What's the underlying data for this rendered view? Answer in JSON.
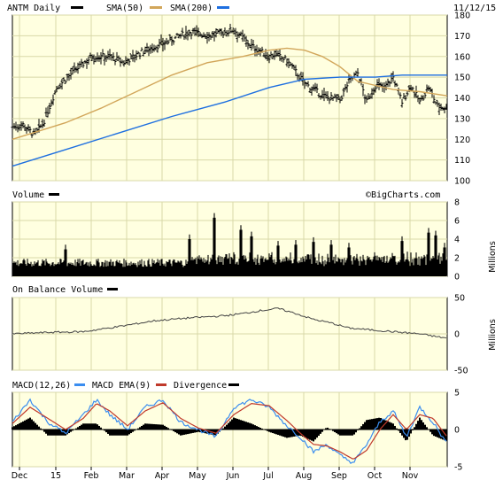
{
  "header": {
    "symbol_label": "ANTM Daily",
    "sma50_label": "SMA(50)",
    "sma200_label": "SMA(200)",
    "date": "11/12/15"
  },
  "volume_panel": {
    "label": "Volume",
    "unit": "Millions",
    "watermark": "©BigCharts.com"
  },
  "obv_panel": {
    "label": "On Balance Volume",
    "unit": "Millions"
  },
  "macd_panel": {
    "label": "MACD(12,26)",
    "ema_label": "MACD EMA(9)",
    "div_label": "Divergence"
  },
  "x_axis_labels": [
    "Dec",
    "15",
    "Feb",
    "Mar",
    "Apr",
    "May",
    "Jun",
    "Jul",
    "Aug",
    "Sep",
    "Oct",
    "Nov"
  ],
  "colors": {
    "background": "#ffffe0",
    "grid": "#d8d8a8",
    "sma50": "#d2a65a",
    "sma200": "#1e6fe0",
    "macd": "#3a8df0",
    "macd_ema": "#c0392b",
    "bars": "#000000"
  },
  "chart_data": [
    {
      "type": "line",
      "title": "ANTM Daily",
      "subtype": "ohlc",
      "ylim": [
        100,
        180
      ],
      "yticks": [
        100,
        110,
        120,
        130,
        140,
        150,
        160,
        170,
        180
      ],
      "price_x": [
        0,
        12,
        25,
        35,
        50,
        70,
        90,
        110,
        125,
        150,
        175,
        200,
        225,
        250,
        270,
        290,
        296,
        310,
        330,
        350,
        370,
        380,
        390,
        400,
        410,
        420,
        430,
        440,
        450,
        460,
        470,
        480,
        491
      ],
      "price": [
        126,
        127,
        122,
        128,
        145,
        153,
        160,
        160,
        157,
        163,
        167,
        172,
        170,
        173,
        165,
        160,
        161,
        158,
        147,
        141,
        139,
        148,
        152,
        138,
        146,
        145,
        150,
        138,
        146,
        138,
        145,
        136,
        135
      ],
      "series": [
        {
          "name": "SMA(50)",
          "x": [
            0,
            60,
            100,
            140,
            180,
            220,
            260,
            290,
            310,
            330,
            350,
            370,
            390,
            410,
            430,
            460,
            491
          ],
          "values": [
            120,
            128,
            135,
            143,
            151,
            157,
            160,
            163,
            164,
            163,
            160,
            155,
            148,
            146,
            144,
            143,
            141
          ]
        },
        {
          "name": "SMA(200)",
          "x": [
            0,
            60,
            120,
            180,
            240,
            290,
            330,
            370,
            410,
            440,
            470,
            491
          ],
          "values": [
            107,
            115,
            123,
            131,
            138,
            145,
            149,
            150,
            150,
            151,
            151,
            151
          ]
        }
      ]
    },
    {
      "type": "bar",
      "title": "Volume",
      "ylabel": "Millions",
      "ylim": [
        0,
        8
      ],
      "yticks": [
        0,
        2,
        4,
        6,
        8
      ]
    },
    {
      "type": "line",
      "title": "On Balance Volume",
      "ylabel": "Millions",
      "ylim": [
        -50,
        50
      ],
      "yticks": [
        -50,
        0,
        50
      ],
      "x": [
        0,
        40,
        80,
        120,
        160,
        200,
        240,
        260,
        280,
        300,
        320,
        340,
        360,
        380,
        400,
        420,
        440,
        460,
        480,
        491
      ],
      "values": [
        0,
        2,
        3,
        10,
        18,
        22,
        25,
        28,
        32,
        35,
        28,
        20,
        15,
        8,
        6,
        4,
        2,
        0,
        -4,
        -6
      ]
    },
    {
      "type": "line",
      "title": "MACD(12,26)",
      "ylim": [
        -5,
        5
      ],
      "yticks": [
        -5,
        0,
        5
      ],
      "series": [
        {
          "name": "MACD(12,26)",
          "x": [
            0,
            20,
            40,
            60,
            80,
            95,
            110,
            130,
            150,
            170,
            190,
            210,
            230,
            250,
            270,
            290,
            310,
            325,
            340,
            355,
            370,
            385,
            400,
            415,
            430,
            445,
            460,
            475,
            491
          ],
          "values": [
            1,
            4,
            1,
            -0.5,
            2,
            4,
            2,
            0,
            3,
            4,
            1,
            0,
            -1,
            3,
            4,
            3,
            0.5,
            -1,
            -3,
            -2,
            -3.5,
            -4.5,
            -2,
            1,
            2.5,
            -1,
            3,
            1,
            -2
          ]
        },
        {
          "name": "MACD EMA(9)",
          "x": [
            0,
            20,
            40,
            60,
            80,
            95,
            110,
            130,
            150,
            170,
            190,
            210,
            230,
            250,
            270,
            290,
            310,
            325,
            340,
            355,
            370,
            385,
            400,
            415,
            430,
            445,
            460,
            475,
            491
          ],
          "values": [
            0.8,
            3,
            1.5,
            0,
            1.5,
            3.5,
            2.5,
            0.5,
            2.5,
            3.6,
            1.5,
            0.2,
            -0.5,
            2,
            3.5,
            3.2,
            1.2,
            -0.5,
            -2,
            -2.2,
            -3,
            -4,
            -2.8,
            0,
            2,
            0,
            2,
            1.5,
            -1
          ]
        }
      ]
    }
  ]
}
